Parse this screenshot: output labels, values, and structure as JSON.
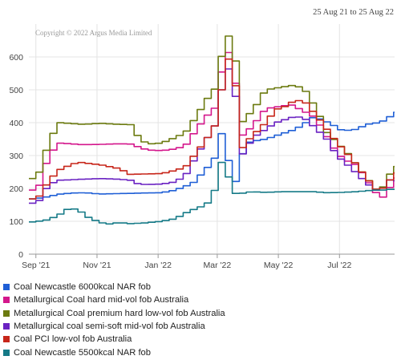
{
  "header": {
    "date_range": "25 Aug 21 to 25 Aug 22"
  },
  "chart_data": {
    "type": "line",
    "watermark": "Copyright © 2022 Argus Media Limited",
    "ylim": [
      0,
      700
    ],
    "y_ticks": [
      "0",
      "100",
      "200",
      "300",
      "400",
      "500",
      "600"
    ],
    "y_tick_values": [
      0,
      100,
      200,
      300,
      400,
      500,
      600
    ],
    "x_range": [
      "2021-08-25",
      "2022-08-25"
    ],
    "x_ticks": [
      {
        "label": "Sep '21",
        "date": "2021-09-01"
      },
      {
        "label": "Nov '21",
        "date": "2021-11-01"
      },
      {
        "label": "Jan '22",
        "date": "2022-01-01"
      },
      {
        "label": "Mar '22",
        "date": "2022-03-01"
      },
      {
        "label": "May '22",
        "date": "2022-05-01"
      },
      {
        "label": "Jul '22",
        "date": "2022-07-01"
      }
    ],
    "grid": true,
    "legend_position": "bottom",
    "series": [
      {
        "name": "Coal Newcastle 6000kcal NAR fob",
        "color": "#1f5fd6",
        "points": [
          [
            "2021-08-25",
            168
          ],
          [
            "2021-08-31",
            170
          ],
          [
            "2021-09-10",
            175
          ],
          [
            "2021-09-20",
            182
          ],
          [
            "2021-09-30",
            185
          ],
          [
            "2021-10-10",
            187
          ],
          [
            "2021-10-20",
            186
          ],
          [
            "2021-11-01",
            183
          ],
          [
            "2021-11-15",
            184
          ],
          [
            "2021-12-01",
            185
          ],
          [
            "2021-12-15",
            186
          ],
          [
            "2022-01-01",
            187
          ],
          [
            "2022-01-15",
            195
          ],
          [
            "2022-02-01",
            215
          ],
          [
            "2022-02-15",
            260
          ],
          [
            "2022-02-25",
            300
          ],
          [
            "2022-03-03",
            380
          ],
          [
            "2022-03-06",
            330
          ],
          [
            "2022-03-10",
            270
          ],
          [
            "2022-03-13",
            240
          ],
          [
            "2022-03-17",
            215
          ],
          [
            "2022-03-22",
            300
          ],
          [
            "2022-03-29",
            340
          ],
          [
            "2022-04-05",
            345
          ],
          [
            "2022-04-15",
            350
          ],
          [
            "2022-04-25",
            360
          ],
          [
            "2022-05-05",
            370
          ],
          [
            "2022-05-15",
            380
          ],
          [
            "2022-05-25",
            400
          ],
          [
            "2022-06-01",
            415
          ],
          [
            "2022-06-10",
            410
          ],
          [
            "2022-06-20",
            395
          ],
          [
            "2022-07-01",
            375
          ],
          [
            "2022-07-15",
            380
          ],
          [
            "2022-07-25",
            395
          ],
          [
            "2022-08-05",
            400
          ],
          [
            "2022-08-15",
            410
          ],
          [
            "2022-08-20",
            430
          ],
          [
            "2022-08-25",
            432
          ]
        ]
      },
      {
        "name": "Metallurgical Coal hard mid-vol fob Australia",
        "color": "#d4178c",
        "points": [
          [
            "2021-08-25",
            195
          ],
          [
            "2021-08-31",
            200
          ],
          [
            "2021-09-10",
            295
          ],
          [
            "2021-09-20",
            338
          ],
          [
            "2021-10-01",
            336
          ],
          [
            "2021-10-15",
            333
          ],
          [
            "2021-11-01",
            334
          ],
          [
            "2021-11-20",
            336
          ],
          [
            "2021-12-01",
            335
          ],
          [
            "2021-12-10",
            325
          ],
          [
            "2021-12-18",
            317
          ],
          [
            "2022-01-01",
            315
          ],
          [
            "2022-01-15",
            320
          ],
          [
            "2022-01-25",
            330
          ],
          [
            "2022-02-05",
            380
          ],
          [
            "2022-02-15",
            420
          ],
          [
            "2022-02-25",
            450
          ],
          [
            "2022-03-03",
            575
          ],
          [
            "2022-03-07",
            610
          ],
          [
            "2022-03-10",
            615
          ],
          [
            "2022-03-14",
            580
          ],
          [
            "2022-03-18",
            460
          ],
          [
            "2022-03-22",
            360
          ],
          [
            "2022-03-28",
            375
          ],
          [
            "2022-04-05",
            400
          ],
          [
            "2022-04-10",
            430
          ],
          [
            "2022-04-20",
            445
          ],
          [
            "2022-05-01",
            450
          ],
          [
            "2022-05-10",
            455
          ],
          [
            "2022-05-20",
            440
          ],
          [
            "2022-06-01",
            420
          ],
          [
            "2022-06-10",
            385
          ],
          [
            "2022-06-20",
            330
          ],
          [
            "2022-07-01",
            290
          ],
          [
            "2022-07-15",
            270
          ],
          [
            "2022-08-01",
            195
          ],
          [
            "2022-08-08",
            168
          ],
          [
            "2022-08-14",
            185
          ],
          [
            "2022-08-19",
            215
          ],
          [
            "2022-08-25",
            235
          ]
        ]
      },
      {
        "name": "Metallurgical Coal premium hard low-vol fob Australia",
        "color": "#6b7a0f",
        "points": [
          [
            "2021-08-25",
            230
          ],
          [
            "2021-08-31",
            240
          ],
          [
            "2021-09-10",
            335
          ],
          [
            "2021-09-20",
            400
          ],
          [
            "2021-10-01",
            398
          ],
          [
            "2021-10-15",
            395
          ],
          [
            "2021-11-01",
            398
          ],
          [
            "2021-11-20",
            395
          ],
          [
            "2021-12-01",
            394
          ],
          [
            "2021-12-10",
            352
          ],
          [
            "2021-12-18",
            335
          ],
          [
            "2022-01-01",
            338
          ],
          [
            "2022-01-15",
            355
          ],
          [
            "2022-01-25",
            370
          ],
          [
            "2022-02-05",
            420
          ],
          [
            "2022-02-15",
            470
          ],
          [
            "2022-02-25",
            510
          ],
          [
            "2022-03-03",
            620
          ],
          [
            "2022-03-07",
            660
          ],
          [
            "2022-03-10",
            665
          ],
          [
            "2022-03-14",
            655
          ],
          [
            "2022-03-18",
            520
          ],
          [
            "2022-03-22",
            400
          ],
          [
            "2022-03-28",
            420
          ],
          [
            "2022-04-05",
            450
          ],
          [
            "2022-04-15",
            500
          ],
          [
            "2022-04-25",
            505
          ],
          [
            "2022-05-05",
            510
          ],
          [
            "2022-05-15",
            515
          ],
          [
            "2022-05-25",
            495
          ],
          [
            "2022-06-05",
            440
          ],
          [
            "2022-06-15",
            370
          ],
          [
            "2022-06-25",
            340
          ],
          [
            "2022-07-05",
            310
          ],
          [
            "2022-07-20",
            250
          ],
          [
            "2022-08-05",
            190
          ],
          [
            "2022-08-12",
            210
          ],
          [
            "2022-08-18",
            250
          ],
          [
            "2022-08-22",
            270
          ],
          [
            "2022-08-25",
            265
          ]
        ]
      },
      {
        "name": "Metallurgical coal semi-soft mid-vol fob Australia",
        "color": "#6a22c2",
        "points": [
          [
            "2021-08-25",
            155
          ],
          [
            "2021-08-31",
            158
          ],
          [
            "2021-09-10",
            210
          ],
          [
            "2021-09-20",
            225
          ],
          [
            "2021-10-01",
            226
          ],
          [
            "2021-10-15",
            228
          ],
          [
            "2021-11-01",
            230
          ],
          [
            "2021-11-20",
            228
          ],
          [
            "2021-12-01",
            225
          ],
          [
            "2021-12-10",
            212
          ],
          [
            "2022-01-01",
            213
          ],
          [
            "2022-01-15",
            220
          ],
          [
            "2022-01-25",
            240
          ],
          [
            "2022-02-05",
            300
          ],
          [
            "2022-02-15",
            350
          ],
          [
            "2022-02-25",
            400
          ],
          [
            "2022-03-03",
            520
          ],
          [
            "2022-03-07",
            560
          ],
          [
            "2022-03-10",
            565
          ],
          [
            "2022-03-14",
            540
          ],
          [
            "2022-03-18",
            420
          ],
          [
            "2022-03-22",
            300
          ],
          [
            "2022-03-28",
            330
          ],
          [
            "2022-04-05",
            360
          ],
          [
            "2022-04-15",
            380
          ],
          [
            "2022-04-25",
            400
          ],
          [
            "2022-05-05",
            410
          ],
          [
            "2022-05-15",
            420
          ],
          [
            "2022-05-25",
            410
          ],
          [
            "2022-06-05",
            380
          ],
          [
            "2022-06-15",
            350
          ],
          [
            "2022-06-25",
            300
          ],
          [
            "2022-07-10",
            260
          ],
          [
            "2022-07-25",
            215
          ],
          [
            "2022-08-05",
            190
          ],
          [
            "2022-08-12",
            205
          ],
          [
            "2022-08-18",
            230
          ],
          [
            "2022-08-25",
            222
          ]
        ]
      },
      {
        "name": "Coal PCI low-vol fob Australia",
        "color": "#c7261a",
        "points": [
          [
            "2021-08-25",
            168
          ],
          [
            "2021-08-31",
            172
          ],
          [
            "2021-09-10",
            220
          ],
          [
            "2021-09-20",
            255
          ],
          [
            "2021-10-01",
            270
          ],
          [
            "2021-10-10",
            280
          ],
          [
            "2021-10-20",
            276
          ],
          [
            "2021-11-01",
            272
          ],
          [
            "2021-11-20",
            260
          ],
          [
            "2021-12-01",
            243
          ],
          [
            "2022-01-01",
            245
          ],
          [
            "2022-01-15",
            255
          ],
          [
            "2022-01-25",
            265
          ],
          [
            "2022-02-05",
            310
          ],
          [
            "2022-02-15",
            350
          ],
          [
            "2022-02-25",
            400
          ],
          [
            "2022-03-03",
            520
          ],
          [
            "2022-03-07",
            590
          ],
          [
            "2022-03-10",
            595
          ],
          [
            "2022-03-14",
            575
          ],
          [
            "2022-03-18",
            450
          ],
          [
            "2022-03-22",
            320
          ],
          [
            "2022-03-28",
            345
          ],
          [
            "2022-04-05",
            370
          ],
          [
            "2022-04-15",
            400
          ],
          [
            "2022-04-25",
            440
          ],
          [
            "2022-05-05",
            450
          ],
          [
            "2022-05-15",
            470
          ],
          [
            "2022-05-25",
            460
          ],
          [
            "2022-06-05",
            420
          ],
          [
            "2022-06-15",
            380
          ],
          [
            "2022-06-25",
            340
          ],
          [
            "2022-07-10",
            290
          ],
          [
            "2022-07-25",
            230
          ],
          [
            "2022-08-05",
            190
          ],
          [
            "2022-08-12",
            205
          ],
          [
            "2022-08-18",
            230
          ],
          [
            "2022-08-25",
            250
          ]
        ]
      },
      {
        "name": "Coal Newcastle 5500kcal NAR fob",
        "color": "#157a87",
        "points": [
          [
            "2021-08-25",
            98
          ],
          [
            "2021-08-31",
            100
          ],
          [
            "2021-09-10",
            105
          ],
          [
            "2021-09-20",
            118
          ],
          [
            "2021-10-01",
            140
          ],
          [
            "2021-10-10",
            135
          ],
          [
            "2021-10-20",
            112
          ],
          [
            "2021-11-01",
            96
          ],
          [
            "2021-11-10",
            92
          ],
          [
            "2021-11-20",
            96
          ],
          [
            "2021-12-01",
            93
          ],
          [
            "2021-12-15",
            95
          ],
          [
            "2022-01-01",
            100
          ],
          [
            "2022-01-15",
            108
          ],
          [
            "2022-01-25",
            125
          ],
          [
            "2022-02-05",
            140
          ],
          [
            "2022-02-15",
            150
          ],
          [
            "2022-02-25",
            205
          ],
          [
            "2022-03-01",
            280
          ],
          [
            "2022-03-03",
            278
          ],
          [
            "2022-03-06",
            250
          ],
          [
            "2022-03-09",
            235
          ],
          [
            "2022-03-12",
            200
          ],
          [
            "2022-03-16",
            185
          ],
          [
            "2022-03-22",
            185
          ],
          [
            "2022-04-01",
            190
          ],
          [
            "2022-04-15",
            188
          ],
          [
            "2022-05-01",
            190
          ],
          [
            "2022-05-15",
            190
          ],
          [
            "2022-06-01",
            190
          ],
          [
            "2022-06-15",
            187
          ],
          [
            "2022-07-01",
            188
          ],
          [
            "2022-07-15",
            190
          ],
          [
            "2022-08-01",
            195
          ],
          [
            "2022-08-10",
            195
          ],
          [
            "2022-08-15",
            197
          ],
          [
            "2022-08-25",
            197
          ]
        ]
      }
    ]
  }
}
